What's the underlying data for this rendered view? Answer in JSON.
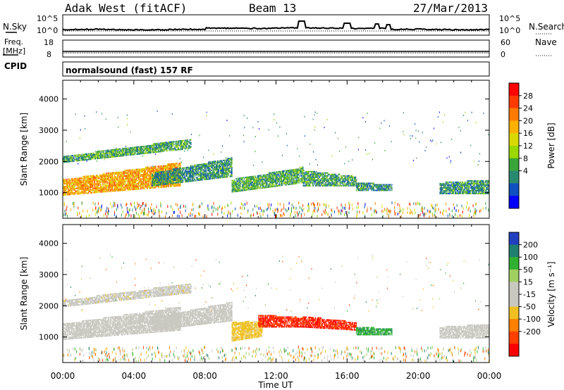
{
  "header": {
    "radar": "Adak West (fitACF)",
    "beam": "Beam 13",
    "date": "27/Mar/2013"
  },
  "small_panels": {
    "nsky_label": "N.Sky",
    "nsearch_label": "N.Search",
    "noise_ticks_left": [
      "10^5",
      "10^0"
    ],
    "noise_ticks_right": [
      "10^5",
      "10^0"
    ],
    "freq_label_line1": "Freq.",
    "freq_label_line2": "[MHz]",
    "freq_ticks": [
      "18",
      "8"
    ],
    "nave_label": "Nave",
    "nave_ticks": [
      "60",
      "0"
    ],
    "cpid_label": "CPID",
    "cpid_text": "normalsound (fast) 157 RF"
  },
  "x_axis": {
    "label": "Time UT",
    "ticks": [
      "00:00",
      "04:00",
      "08:00",
      "12:00",
      "16:00",
      "20:00",
      "00:00"
    ]
  },
  "colorbars": {
    "power": {
      "label": "Power [dB]",
      "ticks": [
        "28",
        "24",
        "20",
        "16",
        "12",
        "8",
        "4"
      ],
      "colors": [
        "#ff0000",
        "#ff3a00",
        "#ff7a00",
        "#ffb000",
        "#d8d800",
        "#9ad800",
        "#3aa53a",
        "#2a8a70",
        "#1050c0",
        "#0000ff"
      ]
    },
    "velocity": {
      "label": "Velocity [m s⁻¹]",
      "ticks": [
        "200",
        "100",
        "50",
        "15",
        "-15",
        "-50",
        "-100",
        "-200"
      ],
      "colors": [
        "#2040c0",
        "#208070",
        "#30b030",
        "#a0d060",
        "#c8c8c0",
        "#c8c8c0",
        "#f0c020",
        "#ff8000",
        "#ff4000",
        "#ff0000"
      ]
    }
  },
  "chart_data": [
    {
      "type": "heatmap",
      "title": "Power",
      "ylabel": "Slant Range [km]",
      "xlabel": "",
      "xlim": [
        0,
        24
      ],
      "ylim": [
        180,
        4600
      ],
      "yticks": [
        "1000",
        "2000",
        "3000",
        "4000"
      ],
      "colorbar_label": "Power [dB]",
      "colorbar_range": [
        0,
        32
      ],
      "echo_bands": [
        {
          "t": [
            0.0,
            6.6
          ],
          "range_start_km": [
            900,
            1200
          ],
          "range_end_km": [
            1400,
            1950
          ],
          "dominant_power_db": 22
        },
        {
          "t": [
            0.0,
            7.2
          ],
          "range_start_km": [
            1950,
            2400
          ],
          "range_end_km": [
            2150,
            2700
          ],
          "dominant_power_db": 10
        },
        {
          "t": [
            5.0,
            9.5
          ],
          "range_start_km": [
            1200,
            1500
          ],
          "range_end_km": [
            1600,
            2100
          ],
          "dominant_power_db": 8
        },
        {
          "t": [
            9.5,
            13.5
          ],
          "range_start_km": [
            1000,
            1300
          ],
          "range_end_km": [
            1400,
            1800
          ],
          "dominant_power_db": 10
        },
        {
          "t": [
            13.5,
            16.5
          ],
          "range_start_km": [
            1200,
            1200
          ],
          "range_end_km": [
            1700,
            1500
          ],
          "dominant_power_db": 9
        },
        {
          "t": [
            16.5,
            18.5
          ],
          "range_start_km": [
            1050,
            1050
          ],
          "range_end_km": [
            1300,
            1250
          ],
          "dominant_power_db": 8
        },
        {
          "t": [
            21.2,
            24.0
          ],
          "range_start_km": [
            950,
            950
          ],
          "range_end_km": [
            1300,
            1400
          ],
          "dominant_power_db": 8
        }
      ]
    },
    {
      "type": "heatmap",
      "title": "Velocity",
      "ylabel": "Slant Range [km]",
      "xlabel": "Time UT",
      "xlim": [
        0,
        24
      ],
      "ylim": [
        180,
        4600
      ],
      "yticks": [
        "1000",
        "2000",
        "3000",
        "4000"
      ],
      "colorbar_label": "Velocity [m s⁻¹]",
      "colorbar_range": [
        -250,
        250
      ],
      "echo_bands": [
        {
          "t": [
            0.0,
            6.6
          ],
          "range_start_km": [
            900,
            1200
          ],
          "range_end_km": [
            1400,
            1950
          ],
          "dominant_velocity_ms": 0
        },
        {
          "t": [
            0.0,
            7.2
          ],
          "range_start_km": [
            1950,
            2400
          ],
          "range_end_km": [
            2150,
            2700
          ],
          "dominant_velocity_ms": -30
        },
        {
          "t": [
            5.0,
            9.5
          ],
          "range_start_km": [
            1200,
            1500
          ],
          "range_end_km": [
            1600,
            2100
          ],
          "dominant_velocity_ms": 0
        },
        {
          "t": [
            9.5,
            11.2
          ],
          "range_start_km": [
            850,
            1000
          ],
          "range_end_km": [
            1450,
            1500
          ],
          "dominant_velocity_ms": -80
        },
        {
          "t": [
            11.0,
            13.5
          ],
          "range_start_km": [
            1300,
            1300
          ],
          "range_end_km": [
            1700,
            1600
          ],
          "dominant_velocity_ms": -220
        },
        {
          "t": [
            13.5,
            16.5
          ],
          "range_start_km": [
            1300,
            1200
          ],
          "range_end_km": [
            1650,
            1450
          ],
          "dominant_velocity_ms": -220
        },
        {
          "t": [
            16.5,
            18.5
          ],
          "range_start_km": [
            1050,
            1050
          ],
          "range_end_km": [
            1300,
            1250
          ],
          "dominant_velocity_ms": 150
        },
        {
          "t": [
            21.2,
            24.0
          ],
          "range_start_km": [
            950,
            950
          ],
          "range_end_km": [
            1300,
            1400
          ],
          "dominant_velocity_ms": 0
        }
      ]
    }
  ]
}
